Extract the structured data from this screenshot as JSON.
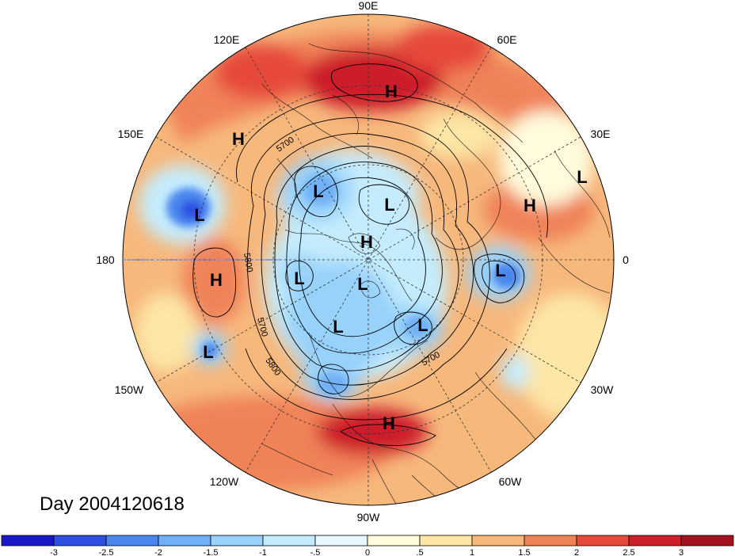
{
  "title": "Day 2004120618",
  "longitude_labels": {
    "deg_90E": "90E",
    "deg_60E": "60E",
    "deg_120E": "120E",
    "deg_30E": "30E",
    "deg_150E": "150E",
    "deg_0": "0",
    "deg_180": "180",
    "deg_30W": "30W",
    "deg_150W": "150W",
    "deg_60W": "60W",
    "deg_120W": "120W",
    "deg_90W": "90W"
  },
  "contour_labels": [
    "5700",
    "5800",
    "5700",
    "5800",
    "5700"
  ],
  "pressure_centers": [
    {
      "label": "H",
      "name": "high-center-siberia"
    },
    {
      "label": "H",
      "name": "high-center-east-asia"
    },
    {
      "label": "L",
      "name": "low-center-europe"
    },
    {
      "label": "H",
      "name": "high-center-west-africa"
    },
    {
      "label": "L",
      "name": "low-center-pacific-west"
    },
    {
      "label": "L",
      "name": "low-center-arctic-siberia"
    },
    {
      "label": "L",
      "name": "low-center-arctic-north"
    },
    {
      "label": "H",
      "name": "high-center-arctic"
    },
    {
      "label": "H",
      "name": "high-center-pacific"
    },
    {
      "label": "L",
      "name": "low-center-alaska"
    },
    {
      "label": "L",
      "name": "low-center-arctic-canada"
    },
    {
      "label": "L",
      "name": "low-center-atlantic"
    },
    {
      "label": "L",
      "name": "low-center-hudson"
    },
    {
      "label": "L",
      "name": "low-center-labrador"
    },
    {
      "label": "L",
      "name": "low-center-pacific-east"
    },
    {
      "label": "H",
      "name": "high-center-caribbean"
    }
  ],
  "colorbar": {
    "labels": [
      "-3",
      "-2.5",
      "-2",
      "-1.5",
      "-1",
      "-.5",
      "0",
      ".5",
      "1",
      "1.5",
      "2",
      "2.5",
      "3"
    ],
    "colors": [
      "#1a17c8",
      "#2e4fe0",
      "#4a86ee",
      "#6fb0f6",
      "#98d2fb",
      "#c4ecfd",
      "#e6f8fe",
      "#fffbdc",
      "#fde6a6",
      "#f7b87c",
      "#f08258",
      "#e64a3a",
      "#cd1f2a",
      "#a3101e"
    ]
  }
}
